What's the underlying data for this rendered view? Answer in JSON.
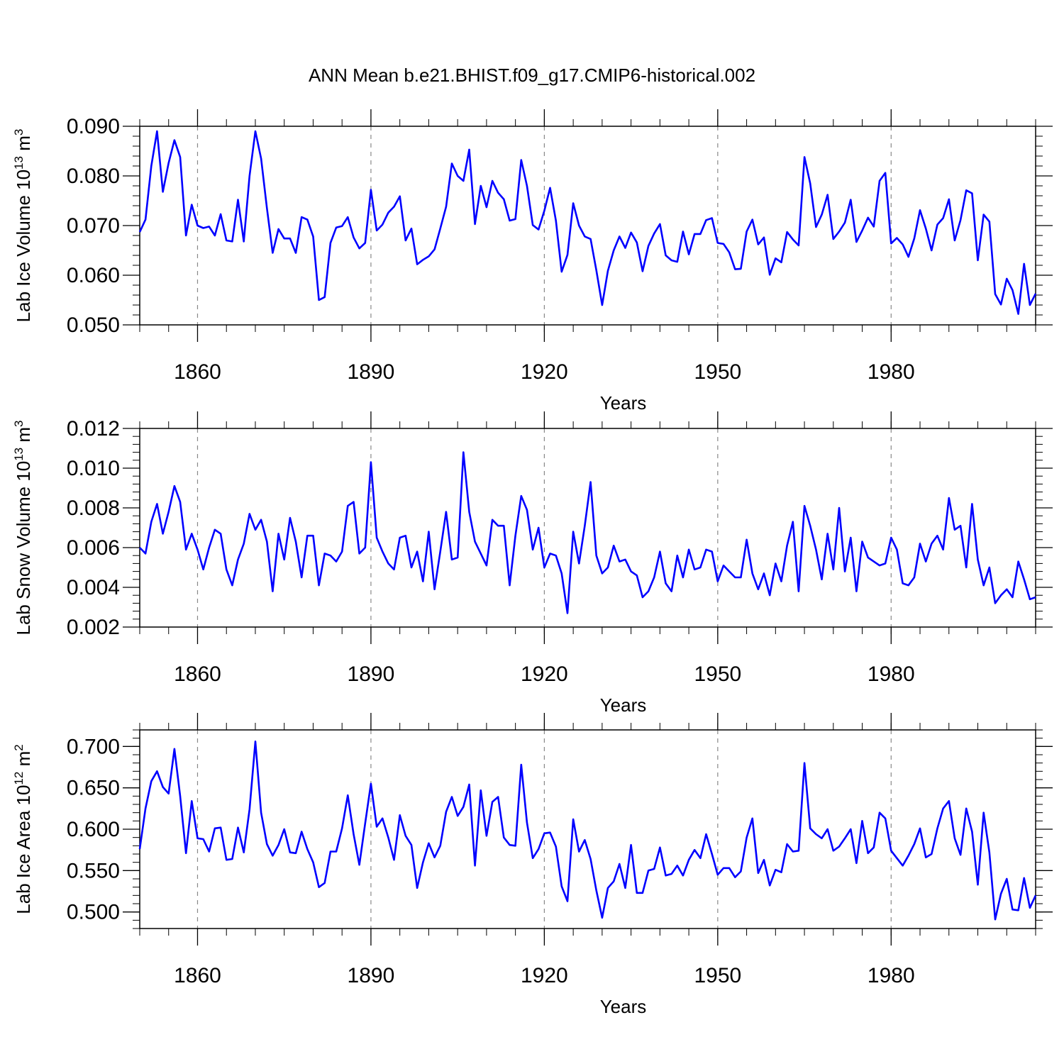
{
  "title": "ANN Mean b.e21.BHIST.f09_g17.CMIP6-historical.002",
  "line_color": "#0000ff",
  "chart_data": [
    {
      "type": "line",
      "xlabel": "Years",
      "ylabel": {
        "base": "Lab Ice Volume 10",
        "exp": "13",
        "unit": " m",
        "unit_exp": "3"
      },
      "xlim": [
        1850,
        2005
      ],
      "ylim": [
        0.05,
        0.09
      ],
      "xticks": [
        1860,
        1890,
        1920,
        1950,
        1980
      ],
      "yticks": [
        0.05,
        0.06,
        0.07,
        0.08,
        0.09
      ],
      "ytick_labels": [
        "0.050",
        "0.060",
        "0.070",
        "0.080",
        "0.090"
      ],
      "x_start": 1850,
      "values": [
        0.0687,
        0.0712,
        0.082,
        0.089,
        0.0768,
        0.0826,
        0.0872,
        0.0838,
        0.068,
        0.0742,
        0.07,
        0.0695,
        0.0698,
        0.068,
        0.0723,
        0.067,
        0.0668,
        0.0752,
        0.0668,
        0.08,
        0.089,
        0.0835,
        0.0735,
        0.0645,
        0.0693,
        0.0674,
        0.0674,
        0.0645,
        0.0717,
        0.0712,
        0.0678,
        0.055,
        0.0556,
        0.0665,
        0.0696,
        0.0699,
        0.0717,
        0.0676,
        0.0654,
        0.0665,
        0.0772,
        0.069,
        0.0702,
        0.0726,
        0.0738,
        0.0759,
        0.067,
        0.0694,
        0.0622,
        0.0631,
        0.0638,
        0.0652,
        0.0694,
        0.0738,
        0.0825,
        0.08,
        0.079,
        0.0853,
        0.0703,
        0.078,
        0.0737,
        0.079,
        0.0766,
        0.0753,
        0.071,
        0.0713,
        0.0832,
        0.078,
        0.0701,
        0.0692,
        0.073,
        0.0776,
        0.071,
        0.0607,
        0.0641,
        0.0745,
        0.07,
        0.0678,
        0.0673,
        0.061,
        0.054,
        0.0609,
        0.065,
        0.0678,
        0.0655,
        0.0686,
        0.0666,
        0.0608,
        0.0659,
        0.0684,
        0.0703,
        0.064,
        0.063,
        0.0627,
        0.0688,
        0.0642,
        0.0683,
        0.0683,
        0.0711,
        0.0715,
        0.0665,
        0.0663,
        0.0646,
        0.0612,
        0.0613,
        0.0688,
        0.0712,
        0.0662,
        0.0676,
        0.0601,
        0.0634,
        0.0626,
        0.0687,
        0.0672,
        0.066,
        0.0838,
        0.0785,
        0.0697,
        0.0722,
        0.0762,
        0.0673,
        0.0688,
        0.0706,
        0.0752,
        0.0667,
        0.069,
        0.0716,
        0.0698,
        0.079,
        0.0806,
        0.0664,
        0.0675,
        0.0662,
        0.0637,
        0.0674,
        0.0731,
        0.0694,
        0.065,
        0.0702,
        0.0715,
        0.0753,
        0.067,
        0.0711,
        0.0771,
        0.0765,
        0.063,
        0.0722,
        0.0708,
        0.0562,
        0.0541,
        0.0593,
        0.057,
        0.0522,
        0.0623,
        0.054,
        0.0563
      ]
    },
    {
      "type": "line",
      "xlabel": "Years",
      "ylabel": {
        "base": "Lab Snow Volume 10",
        "exp": "13",
        "unit": " m",
        "unit_exp": "3"
      },
      "xlim": [
        1850,
        2005
      ],
      "ylim": [
        0.002,
        0.012
      ],
      "xticks": [
        1860,
        1890,
        1920,
        1950,
        1980
      ],
      "yticks": [
        0.002,
        0.004,
        0.006,
        0.008,
        0.01,
        0.012
      ],
      "ytick_labels": [
        "0.002",
        "0.004",
        "0.006",
        "0.008",
        "0.010",
        "0.012"
      ],
      "x_start": 1850,
      "values": [
        0.006,
        0.0057,
        0.0073,
        0.0082,
        0.0067,
        0.0078,
        0.0091,
        0.0083,
        0.0059,
        0.0067,
        0.0059,
        0.0049,
        0.006,
        0.0069,
        0.0067,
        0.0049,
        0.0041,
        0.0054,
        0.0062,
        0.0077,
        0.0069,
        0.0074,
        0.0063,
        0.0038,
        0.0067,
        0.0054,
        0.0075,
        0.0063,
        0.0045,
        0.0066,
        0.0066,
        0.0041,
        0.0057,
        0.0056,
        0.0053,
        0.0058,
        0.0081,
        0.0083,
        0.0057,
        0.006,
        0.0103,
        0.0065,
        0.0058,
        0.0052,
        0.0049,
        0.0065,
        0.0066,
        0.005,
        0.0058,
        0.0043,
        0.0068,
        0.0039,
        0.0058,
        0.0078,
        0.0054,
        0.0055,
        0.0108,
        0.0078,
        0.0063,
        0.0057,
        0.0051,
        0.0074,
        0.0071,
        0.0071,
        0.0041,
        0.0066,
        0.0086,
        0.0079,
        0.0059,
        0.007,
        0.005,
        0.0057,
        0.0056,
        0.0047,
        0.0027,
        0.0068,
        0.0052,
        0.0071,
        0.0093,
        0.0056,
        0.0047,
        0.005,
        0.0061,
        0.0053,
        0.0054,
        0.0048,
        0.0046,
        0.0035,
        0.0038,
        0.0045,
        0.0058,
        0.0042,
        0.0038,
        0.0056,
        0.0045,
        0.0059,
        0.0049,
        0.005,
        0.0059,
        0.0058,
        0.0043,
        0.0051,
        0.0048,
        0.0045,
        0.0045,
        0.0064,
        0.0047,
        0.0039,
        0.0047,
        0.0036,
        0.0052,
        0.0043,
        0.0061,
        0.0073,
        0.0038,
        0.0081,
        0.0071,
        0.0059,
        0.0044,
        0.0067,
        0.0049,
        0.008,
        0.0048,
        0.0065,
        0.0038,
        0.0063,
        0.0055,
        0.0053,
        0.0051,
        0.0052,
        0.0065,
        0.0059,
        0.0042,
        0.0041,
        0.0045,
        0.0062,
        0.0053,
        0.0062,
        0.0066,
        0.0059,
        0.0085,
        0.0069,
        0.0071,
        0.005,
        0.0082,
        0.0054,
        0.0041,
        0.005,
        0.0032,
        0.0036,
        0.0039,
        0.0035,
        0.0053,
        0.0044,
        0.0034,
        0.0035
      ]
    },
    {
      "type": "line",
      "xlabel": "Years",
      "ylabel": {
        "base": "Lab Ice Area 10",
        "exp": "12",
        "unit": " m",
        "unit_exp": "2"
      },
      "xlim": [
        1850,
        2005
      ],
      "ylim": [
        0.48,
        0.72
      ],
      "xticks": [
        1860,
        1890,
        1920,
        1950,
        1980
      ],
      "yticks": [
        0.5,
        0.55,
        0.6,
        0.65,
        0.7
      ],
      "ytick_labels": [
        "0.500",
        "0.550",
        "0.600",
        "0.650",
        "0.700"
      ],
      "x_start": 1850,
      "values": [
        0.576,
        0.625,
        0.658,
        0.67,
        0.651,
        0.643,
        0.697,
        0.64,
        0.571,
        0.634,
        0.589,
        0.588,
        0.573,
        0.601,
        0.602,
        0.563,
        0.564,
        0.602,
        0.572,
        0.624,
        0.706,
        0.62,
        0.582,
        0.568,
        0.581,
        0.6,
        0.572,
        0.571,
        0.597,
        0.576,
        0.56,
        0.53,
        0.535,
        0.573,
        0.573,
        0.601,
        0.641,
        0.594,
        0.557,
        0.607,
        0.655,
        0.603,
        0.613,
        0.59,
        0.563,
        0.617,
        0.592,
        0.581,
        0.529,
        0.56,
        0.583,
        0.566,
        0.58,
        0.621,
        0.639,
        0.616,
        0.627,
        0.654,
        0.556,
        0.647,
        0.592,
        0.633,
        0.639,
        0.59,
        0.581,
        0.58,
        0.678,
        0.608,
        0.565,
        0.576,
        0.595,
        0.596,
        0.579,
        0.531,
        0.513,
        0.612,
        0.573,
        0.587,
        0.564,
        0.526,
        0.493,
        0.529,
        0.537,
        0.558,
        0.529,
        0.581,
        0.523,
        0.523,
        0.55,
        0.552,
        0.578,
        0.544,
        0.546,
        0.556,
        0.544,
        0.563,
        0.575,
        0.565,
        0.594,
        0.57,
        0.545,
        0.553,
        0.553,
        0.542,
        0.549,
        0.59,
        0.613,
        0.547,
        0.563,
        0.532,
        0.551,
        0.548,
        0.582,
        0.573,
        0.574,
        0.68,
        0.601,
        0.594,
        0.589,
        0.6,
        0.574,
        0.579,
        0.589,
        0.6,
        0.559,
        0.61,
        0.571,
        0.578,
        0.62,
        0.613,
        0.574,
        0.565,
        0.556,
        0.568,
        0.582,
        0.601,
        0.566,
        0.57,
        0.601,
        0.625,
        0.634,
        0.589,
        0.569,
        0.625,
        0.597,
        0.533,
        0.62,
        0.572,
        0.491,
        0.522,
        0.54,
        0.503,
        0.502,
        0.541,
        0.505,
        0.52
      ]
    }
  ]
}
